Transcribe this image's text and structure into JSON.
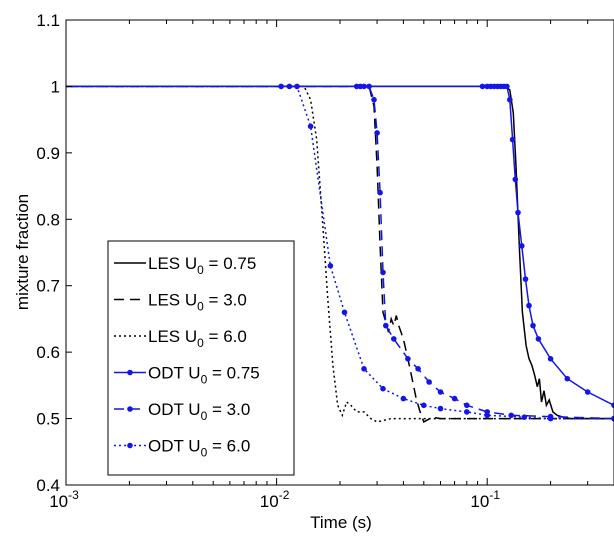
{
  "chart_data": {
    "type": "line",
    "title": "",
    "xlabel": "Time (s)",
    "ylabel": "mixture fraction",
    "xscale": "log",
    "xlim": [
      0.001,
      0.4
    ],
    "ylim": [
      0.4,
      1.1
    ],
    "grid": false,
    "legend_position": "bottom-left",
    "x_ticks": [
      {
        "value": 0.001,
        "base": "10",
        "exp": "-3"
      },
      {
        "value": 0.01,
        "base": "10",
        "exp": "-2"
      },
      {
        "value": 0.1,
        "base": "10",
        "exp": "-1"
      }
    ],
    "y_ticks": [
      {
        "value": 0.4,
        "label": "0.4"
      },
      {
        "value": 0.5,
        "label": "0.5"
      },
      {
        "value": 0.6,
        "label": "0.6"
      },
      {
        "value": 0.7,
        "label": "0.7"
      },
      {
        "value": 0.8,
        "label": "0.8"
      },
      {
        "value": 0.9,
        "label": "0.9"
      },
      {
        "value": 1.0,
        "label": "1"
      },
      {
        "value": 1.1,
        "label": "1.1"
      }
    ],
    "series": [
      {
        "legend": {
          "prefix": "LES U",
          "sub": "0",
          "suffix": " = 0.75"
        },
        "color": "#000000",
        "dash": "",
        "markers": false,
        "points": [
          [
            0.001,
            1.0
          ],
          [
            0.12,
            1.0
          ],
          [
            0.128,
            0.995
          ],
          [
            0.133,
            0.96
          ],
          [
            0.137,
            0.88
          ],
          [
            0.142,
            0.76
          ],
          [
            0.147,
            0.66
          ],
          [
            0.153,
            0.61
          ],
          [
            0.158,
            0.59
          ],
          [
            0.163,
            0.58
          ],
          [
            0.168,
            0.565
          ],
          [
            0.173,
            0.548
          ],
          [
            0.177,
            0.56
          ],
          [
            0.181,
            0.525
          ],
          [
            0.186,
            0.542
          ],
          [
            0.191,
            0.52
          ],
          [
            0.197,
            0.528
          ],
          [
            0.205,
            0.51
          ],
          [
            0.215,
            0.505
          ],
          [
            0.23,
            0.502
          ],
          [
            0.25,
            0.5
          ],
          [
            0.3,
            0.5
          ],
          [
            0.4,
            0.5
          ]
        ]
      },
      {
        "legend": {
          "prefix": "LES U",
          "sub": "0",
          "suffix": " = 3.0"
        },
        "color": "#000000",
        "dash": "10,6",
        "markers": false,
        "points": [
          [
            0.001,
            1.0
          ],
          [
            0.0275,
            1.0
          ],
          [
            0.029,
            0.97
          ],
          [
            0.03,
            0.88
          ],
          [
            0.031,
            0.76
          ],
          [
            0.032,
            0.66
          ],
          [
            0.033,
            0.645
          ],
          [
            0.034,
            0.63
          ],
          [
            0.035,
            0.65
          ],
          [
            0.036,
            0.64
          ],
          [
            0.037,
            0.655
          ],
          [
            0.038,
            0.64
          ],
          [
            0.04,
            0.62
          ],
          [
            0.042,
            0.59
          ],
          [
            0.044,
            0.56
          ],
          [
            0.046,
            0.53
          ],
          [
            0.048,
            0.51
          ],
          [
            0.05,
            0.495
          ],
          [
            0.055,
            0.502
          ],
          [
            0.06,
            0.5
          ],
          [
            0.1,
            0.5
          ],
          [
            0.4,
            0.5
          ]
        ]
      },
      {
        "legend": {
          "prefix": "LES U",
          "sub": "0",
          "suffix": " = 6.0"
        },
        "color": "#000000",
        "dash": "2,3",
        "markers": false,
        "points": [
          [
            0.001,
            1.0
          ],
          [
            0.0135,
            1.0
          ],
          [
            0.0145,
            0.98
          ],
          [
            0.0155,
            0.92
          ],
          [
            0.0165,
            0.8
          ],
          [
            0.0175,
            0.68
          ],
          [
            0.0185,
            0.58
          ],
          [
            0.0195,
            0.52
          ],
          [
            0.0205,
            0.505
          ],
          [
            0.0215,
            0.525
          ],
          [
            0.0225,
            0.52
          ],
          [
            0.024,
            0.51
          ],
          [
            0.026,
            0.51
          ],
          [
            0.028,
            0.5
          ],
          [
            0.03,
            0.495
          ],
          [
            0.035,
            0.5
          ],
          [
            0.05,
            0.5
          ],
          [
            0.1,
            0.5
          ],
          [
            0.4,
            0.5
          ]
        ]
      },
      {
        "legend": {
          "prefix": "ODT U",
          "sub": "0",
          "suffix": " = 0.75"
        },
        "color": "#1515e6",
        "dash": "",
        "markers": true,
        "points": [
          [
            0.001,
            1.0
          ],
          [
            0.095,
            1.0
          ],
          [
            0.1,
            1.0
          ],
          [
            0.104,
            1.0
          ],
          [
            0.108,
            1.0
          ],
          [
            0.112,
            1.0
          ],
          [
            0.116,
            1.0
          ],
          [
            0.12,
            1.0
          ],
          [
            0.124,
            1.0
          ],
          [
            0.128,
            0.98
          ],
          [
            0.132,
            0.92
          ],
          [
            0.136,
            0.86
          ],
          [
            0.14,
            0.81
          ],
          [
            0.146,
            0.76
          ],
          [
            0.152,
            0.71
          ],
          [
            0.158,
            0.67
          ],
          [
            0.165,
            0.64
          ],
          [
            0.175,
            0.62
          ],
          [
            0.2,
            0.59
          ],
          [
            0.24,
            0.56
          ],
          [
            0.3,
            0.54
          ],
          [
            0.4,
            0.52
          ]
        ]
      },
      {
        "legend": {
          "prefix": "ODT U",
          "sub": "0",
          "suffix": " = 3.0"
        },
        "color": "#1515e6",
        "dash": "10,6",
        "markers": true,
        "points": [
          [
            0.001,
            1.0
          ],
          [
            0.024,
            1.0
          ],
          [
            0.025,
            1.0
          ],
          [
            0.026,
            1.0
          ],
          [
            0.0275,
            1.0
          ],
          [
            0.029,
            0.98
          ],
          [
            0.03,
            0.93
          ],
          [
            0.031,
            0.84
          ],
          [
            0.032,
            0.72
          ],
          [
            0.033,
            0.64
          ],
          [
            0.036,
            0.62
          ],
          [
            0.042,
            0.59
          ],
          [
            0.047,
            0.575
          ],
          [
            0.053,
            0.555
          ],
          [
            0.06,
            0.54
          ],
          [
            0.07,
            0.53
          ],
          [
            0.08,
            0.52
          ],
          [
            0.1,
            0.51
          ],
          [
            0.13,
            0.505
          ],
          [
            0.2,
            0.503
          ],
          [
            0.4,
            0.5
          ]
        ]
      },
      {
        "legend": {
          "prefix": "ODT U",
          "sub": "0",
          "suffix": " = 6.0"
        },
        "color": "#1515e6",
        "dash": "2,3",
        "markers": true,
        "points": [
          [
            0.001,
            1.0
          ],
          [
            0.0105,
            1.0
          ],
          [
            0.0115,
            1.0
          ],
          [
            0.0125,
            1.0
          ],
          [
            0.0145,
            0.94
          ],
          [
            0.018,
            0.73
          ],
          [
            0.021,
            0.66
          ],
          [
            0.026,
            0.575
          ],
          [
            0.032,
            0.545
          ],
          [
            0.04,
            0.53
          ],
          [
            0.05,
            0.52
          ],
          [
            0.06,
            0.515
          ],
          [
            0.08,
            0.51
          ],
          [
            0.1,
            0.505
          ],
          [
            0.15,
            0.502
          ],
          [
            0.2,
            0.5
          ],
          [
            0.4,
            0.5
          ]
        ]
      }
    ]
  }
}
